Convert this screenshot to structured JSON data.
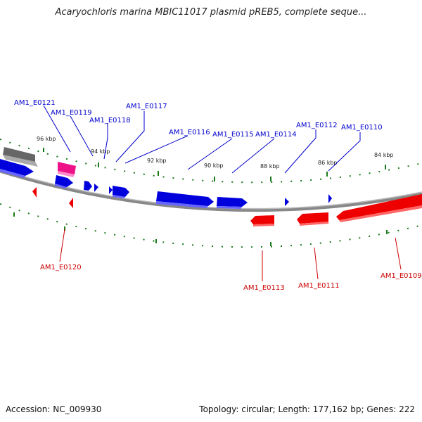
{
  "title": "Acaryochloris marina MBIC11017 plasmid pREB5, complete seque...",
  "footer": {
    "accession": "Accession: NC_009930",
    "info": "Topology: circular; Length: 177,162 bp; Genes: 222"
  },
  "ticks": [
    "96 kbp",
    "94 kbp",
    "92 kbp",
    "90 kbp",
    "88 kbp",
    "86 kbp",
    "84 kbp"
  ],
  "genes": {
    "AM1_E0121": "AM1_E0121",
    "AM1_E0119": "AM1_E0119",
    "AM1_E0118": "AM1_E0118",
    "AM1_E0117": "AM1_E0117",
    "AM1_E0116": "AM1_E0116",
    "AM1_E0115": "AM1_E0115",
    "AM1_E0114": "AM1_E0114",
    "AM1_E0112": "AM1_E0112",
    "AM1_E0110": "AM1_E0110",
    "AM1_E0120": "AM1_E0120",
    "AM1_E0113": "AM1_E0113",
    "AM1_E0111": "AM1_E0111",
    "AM1_E0109": "AM1_E0109"
  },
  "colors": {
    "forward": "#0000ee",
    "reverse": "#ee0000",
    "pink": "#ee1188",
    "gray": "#666666",
    "tick": "#1a7a1a"
  }
}
